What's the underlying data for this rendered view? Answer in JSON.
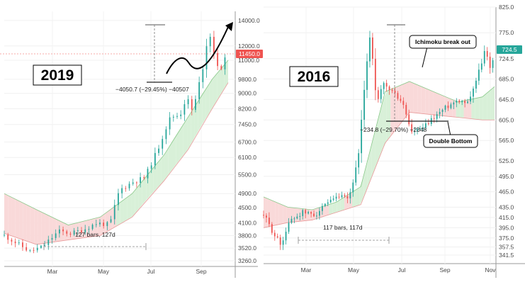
{
  "chart_data": [
    {
      "type": "candlestick",
      "panel_label": "2019",
      "x_ticks": [
        "Mar",
        "May",
        "Jul",
        "Sep"
      ],
      "y_ticks": [
        3260.0,
        3520.0,
        3800.0,
        4100.0,
        4500.0,
        4900.0,
        5500.0,
        6100.0,
        6700.0,
        7450.0,
        8200.0,
        9000.0,
        9800.0,
        11000.0,
        12000.0,
        14000.0
      ],
      "y_scale": "log",
      "ylim": [
        3150,
        14800
      ],
      "last_price": "11450.0",
      "price_path": [
        {
          "x": 0,
          "y": 3800
        },
        {
          "x": 8,
          "y": 3620
        },
        {
          "x": 16,
          "y": 3450
        },
        {
          "x": 24,
          "y": 3550
        },
        {
          "x": 34,
          "y": 3900
        },
        {
          "x": 42,
          "y": 3850
        },
        {
          "x": 50,
          "y": 3950
        },
        {
          "x": 58,
          "y": 4100
        },
        {
          "x": 66,
          "y": 4050
        },
        {
          "x": 72,
          "y": 5000
        },
        {
          "x": 80,
          "y": 5250
        },
        {
          "x": 88,
          "y": 5400
        },
        {
          "x": 96,
          "y": 6400
        },
        {
          "x": 104,
          "y": 7800
        },
        {
          "x": 110,
          "y": 7900
        },
        {
          "x": 114,
          "y": 8800
        },
        {
          "x": 118,
          "y": 8000
        },
        {
          "x": 124,
          "y": 10400
        },
        {
          "x": 128,
          "y": 13100
        },
        {
          "x": 134,
          "y": 10200
        },
        {
          "x": 140,
          "y": 11450
        }
      ],
      "cloud_top": [
        {
          "x": 0,
          "y": 4900
        },
        {
          "x": 20,
          "y": 4450
        },
        {
          "x": 40,
          "y": 4050
        },
        {
          "x": 60,
          "y": 4250
        },
        {
          "x": 80,
          "y": 4900
        },
        {
          "x": 100,
          "y": 6200
        },
        {
          "x": 115,
          "y": 7800
        },
        {
          "x": 130,
          "y": 9800
        },
        {
          "x": 140,
          "y": 11000
        }
      ],
      "cloud_bottom": [
        {
          "x": 0,
          "y": 3850
        },
        {
          "x": 20,
          "y": 3600
        },
        {
          "x": 40,
          "y": 3700
        },
        {
          "x": 60,
          "y": 3800
        },
        {
          "x": 80,
          "y": 4250
        },
        {
          "x": 100,
          "y": 5300
        },
        {
          "x": 115,
          "y": 6400
        },
        {
          "x": 130,
          "y": 8200
        },
        {
          "x": 140,
          "y": 9600
        }
      ],
      "measure_drop_label": "−4050.7 (−29.45%) −40507",
      "measure_bars_label": "127 bars, 127d"
    },
    {
      "type": "candlestick",
      "panel_label": "2016",
      "x_ticks": [
        "Mar",
        "May",
        "Jul",
        "Sep",
        "Nov"
      ],
      "y_ticks": [
        341.5,
        357.5,
        375.0,
        395.0,
        415.0,
        435.0,
        465.0,
        495.0,
        525.0,
        565.0,
        605.0,
        645.0,
        685.0,
        724.5,
        775.0,
        825.0
      ],
      "y_scale": "linear",
      "ylim": [
        325,
        825
      ],
      "last_price": "724.5",
      "price_path": [
        {
          "x": 0,
          "y": 420
        },
        {
          "x": 8,
          "y": 385
        },
        {
          "x": 14,
          "y": 362
        },
        {
          "x": 22,
          "y": 410
        },
        {
          "x": 32,
          "y": 425
        },
        {
          "x": 42,
          "y": 420
        },
        {
          "x": 52,
          "y": 440
        },
        {
          "x": 62,
          "y": 455
        },
        {
          "x": 70,
          "y": 450
        },
        {
          "x": 78,
          "y": 530
        },
        {
          "x": 84,
          "y": 700
        },
        {
          "x": 88,
          "y": 778
        },
        {
          "x": 93,
          "y": 630
        },
        {
          "x": 98,
          "y": 675
        },
        {
          "x": 106,
          "y": 660
        },
        {
          "x": 114,
          "y": 640
        },
        {
          "x": 122,
          "y": 580
        },
        {
          "x": 132,
          "y": 590
        },
        {
          "x": 140,
          "y": 610
        },
        {
          "x": 150,
          "y": 630
        },
        {
          "x": 160,
          "y": 645
        },
        {
          "x": 168,
          "y": 640
        },
        {
          "x": 176,
          "y": 690
        },
        {
          "x": 182,
          "y": 740
        },
        {
          "x": 186,
          "y": 710
        },
        {
          "x": 190,
          "y": 724.5
        }
      ],
      "cloud_top": [
        {
          "x": 0,
          "y": 455
        },
        {
          "x": 20,
          "y": 435
        },
        {
          "x": 40,
          "y": 430
        },
        {
          "x": 60,
          "y": 445
        },
        {
          "x": 80,
          "y": 475
        },
        {
          "x": 100,
          "y": 660
        },
        {
          "x": 120,
          "y": 680
        },
        {
          "x": 140,
          "y": 660
        },
        {
          "x": 160,
          "y": 640
        },
        {
          "x": 180,
          "y": 650
        },
        {
          "x": 190,
          "y": 670
        }
      ],
      "cloud_bottom": [
        {
          "x": 0,
          "y": 395
        },
        {
          "x": 20,
          "y": 405
        },
        {
          "x": 40,
          "y": 410
        },
        {
          "x": 60,
          "y": 425
        },
        {
          "x": 80,
          "y": 440
        },
        {
          "x": 100,
          "y": 560
        },
        {
          "x": 120,
          "y": 620
        },
        {
          "x": 140,
          "y": 615
        },
        {
          "x": 160,
          "y": 610
        },
        {
          "x": 180,
          "y": 605
        },
        {
          "x": 190,
          "y": 605
        }
      ],
      "measure_drop_label": "−234.8 (−29.70%) −2348",
      "measure_bars_label": "117 bars, 117d",
      "callouts": [
        "Ichimoku break out",
        "Double Bottom"
      ]
    }
  ],
  "colors": {
    "up": "#26a69a",
    "down": "#ef5350",
    "cloud_bull": "#d8f0d8",
    "cloud_bear": "#f9d9d9",
    "price_badge": "#ef5350",
    "axis_text": "#4a4a4a"
  }
}
